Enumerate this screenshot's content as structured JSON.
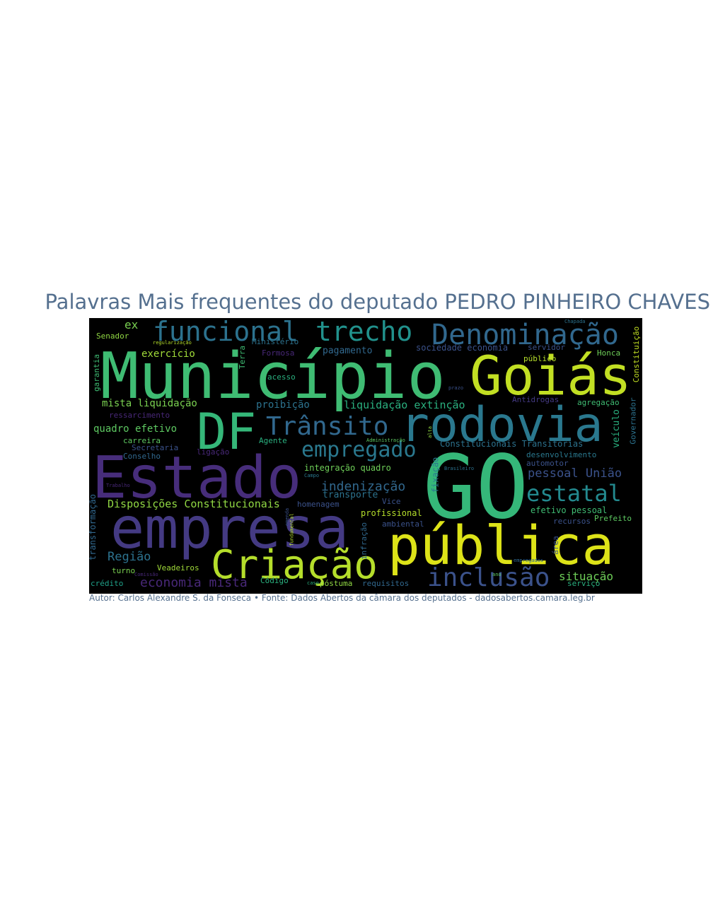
{
  "title": "Palavras Mais frequentes do deputado PEDRO PINHEIRO CHAVES",
  "credit": "Autor: Carlos Alexandre S. da Fonseca • Fonte: Dados Abertos da câmara dos deputados - dadosabertos.camara.leg.br",
  "words": [
    {
      "text": "Município",
      "color": "#3fbc73"
    },
    {
      "text": "Goiás",
      "color": "#c2df23"
    },
    {
      "text": "GO",
      "color": "#35b779"
    },
    {
      "text": "pública",
      "color": "#dde318"
    },
    {
      "text": "Estado",
      "color": "#472d7b"
    },
    {
      "text": "empresa",
      "color": "#443a83"
    },
    {
      "text": "rodovia",
      "color": "#2a788e"
    },
    {
      "text": "DF",
      "color": "#35b779"
    },
    {
      "text": "Criação",
      "color": "#b5de2b"
    },
    {
      "text": "Denominação",
      "color": "#31688e"
    },
    {
      "text": "funcional",
      "color": "#2c728e"
    },
    {
      "text": "trecho",
      "color": "#21918c"
    },
    {
      "text": "Trânsito",
      "color": "#31688e"
    },
    {
      "text": "empregado",
      "color": "#2a788e"
    },
    {
      "text": "estatal",
      "color": "#23898e"
    },
    {
      "text": "inclusão",
      "color": "#3b528b"
    },
    {
      "text": "indenização",
      "color": "#31688e"
    },
    {
      "text": "pessoal União",
      "color": "#3b528b"
    },
    {
      "text": "situação",
      "color": "#6ece58"
    },
    {
      "text": "Região",
      "color": "#2c728e"
    },
    {
      "text": "economia mista",
      "color": "#482878"
    },
    {
      "text": "Disposições Constitucionais",
      "color": "#90d743"
    },
    {
      "text": "liquidação extinção",
      "color": "#2ab07f"
    },
    {
      "text": "mista liquidação",
      "color": "#7ad151"
    },
    {
      "text": "quadro efetivo",
      "color": "#5ec962"
    },
    {
      "text": "proibição",
      "color": "#2c728e"
    },
    {
      "text": "exercício",
      "color": "#a0da39"
    },
    {
      "text": "pagamento",
      "color": "#31688e"
    },
    {
      "text": "sociedade economia",
      "color": "#3b528b"
    },
    {
      "text": "ex",
      "color": "#7ad151"
    },
    {
      "text": "Senador",
      "color": "#90d743"
    },
    {
      "text": "Ministério",
      "color": "#2c728e"
    },
    {
      "text": "Formosa",
      "color": "#482878"
    },
    {
      "text": "servidor",
      "color": "#3b528b"
    },
    {
      "text": "Honca",
      "color": "#6ece58"
    },
    {
      "text": "público",
      "color": "#b5de2b"
    },
    {
      "text": "Constitucionais Transitórias",
      "color": "#2c728e"
    },
    {
      "text": "agregação",
      "color": "#3fbc73"
    },
    {
      "text": "Antidrogas",
      "color": "#443a83"
    },
    {
      "text": "desenvolvimento",
      "color": "#2a788e"
    },
    {
      "text": "automotor",
      "color": "#3b528b"
    },
    {
      "text": "integração quadro",
      "color": "#6ece58"
    },
    {
      "text": "transporte",
      "color": "#2c728e"
    },
    {
      "text": "homenagem",
      "color": "#3b528b"
    },
    {
      "text": "profissional",
      "color": "#b5de2b"
    },
    {
      "text": "efetivo pessoal",
      "color": "#3fbc73"
    },
    {
      "text": "recursos",
      "color": "#3b528b"
    },
    {
      "text": "Prefeito",
      "color": "#5ec962"
    },
    {
      "text": "ambiental",
      "color": "#3b528b"
    },
    {
      "text": "Vice",
      "color": "#3b528b"
    },
    {
      "text": "acesso",
      "color": "#2ab07f"
    },
    {
      "text": "ressarcimento",
      "color": "#482878"
    },
    {
      "text": "carreira",
      "color": "#5ec962"
    },
    {
      "text": "Secretaria",
      "color": "#3b528b"
    },
    {
      "text": "Conselho",
      "color": "#31688e"
    },
    {
      "text": "ligação",
      "color": "#482878"
    },
    {
      "text": "Agente",
      "color": "#2ab07f"
    },
    {
      "text": "turno",
      "color": "#7ad151"
    },
    {
      "text": "Veadeiros",
      "color": "#a0da39"
    },
    {
      "text": "crédito",
      "color": "#1fa088"
    },
    {
      "text": "Código",
      "color": "#2ab07f"
    },
    {
      "text": "póstuma",
      "color": "#90d743"
    },
    {
      "text": "requisitos",
      "color": "#31688e"
    },
    {
      "text": "serviço",
      "color": "#2ab07f"
    },
    {
      "text": "veículo",
      "color": "#2ab07f"
    },
    {
      "text": "Governador",
      "color": "#2c728e"
    },
    {
      "text": "Constituição",
      "color": "#c2df23"
    },
    {
      "text": "garantia",
      "color": "#3fbc73"
    },
    {
      "text": "transformação",
      "color": "#31688e"
    },
    {
      "text": "infração",
      "color": "#31688e"
    },
    {
      "text": "fixação",
      "color": "#2a788e"
    },
    {
      "text": "Terra",
      "color": "#3fbc73"
    },
    {
      "text": "área",
      "color": "#3b528b"
    },
    {
      "text": "regularização",
      "color": "#b5de2b"
    },
    {
      "text": "Chapada",
      "color": "#2c728e"
    },
    {
      "text": "prazo",
      "color": "#3b528b"
    },
    {
      "text": "Brasileiro",
      "color": "#2c728e"
    },
    {
      "text": "Administração",
      "color": "#5ec962"
    },
    {
      "text": "Campo",
      "color": "#2a788e"
    },
    {
      "text": "Trabalho",
      "color": "#482878"
    },
    {
      "text": "Comissão",
      "color": "#482878"
    },
    {
      "text": "caso",
      "color": "#2ab07f"
    },
    {
      "text": "fundamental",
      "color": "#b5de2b"
    },
    {
      "text": "alta",
      "color": "#90d743"
    },
    {
      "text": "emenda",
      "color": "#3b528b"
    },
    {
      "text": "ano",
      "color": "#5ec962"
    },
    {
      "text": "empregados",
      "color": "#31688e"
    }
  ]
}
